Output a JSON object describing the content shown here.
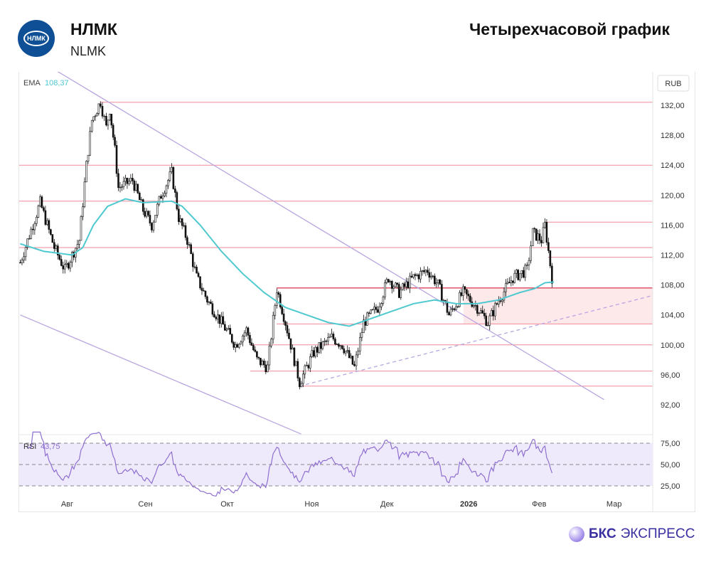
{
  "header": {
    "logo_text": "НЛМК",
    "ticker": "НЛМК",
    "subtitle": "NLMK",
    "title": "Четырехчасовой график"
  },
  "brand": {
    "bold": "БКС",
    "rest": "ЭКСПРЕСС"
  },
  "colors": {
    "ema": "#4fc9d0",
    "level": "#f08a9a",
    "trend": "#b9a6e0",
    "rsi": "#8e6fd0",
    "zone": "#fde8ea"
  },
  "chart_data": {
    "type": "candlestick",
    "currency": "RUB",
    "xlim": [
      12,
      263
    ],
    "ylim": [
      90.5,
      134
    ],
    "yticks": [
      "132,00",
      "128,00",
      "124,00",
      "120,00",
      "116,00",
      "112,00",
      "108,00",
      "104,00",
      "100,00",
      "96,00",
      "92,00"
    ],
    "ytick_values": [
      132,
      128,
      124,
      120,
      116,
      112,
      108,
      104,
      100,
      96,
      92
    ],
    "xticks": [
      {
        "label": "Авг",
        "day": 31
      },
      {
        "label": "Сен",
        "day": 62
      },
      {
        "label": "Окт",
        "day": 94.4
      },
      {
        "label": "Ноя",
        "day": 127.9
      },
      {
        "label": "Дек",
        "day": 157.7
      },
      {
        "label": "2026",
        "day": 190.1
      },
      {
        "label": "Фев",
        "day": 218
      },
      {
        "label": "Мар",
        "day": 247.7
      }
    ],
    "price_path": [
      [
        12.4,
        111
      ],
      [
        20.3,
        119
      ],
      [
        25.9,
        113
      ],
      [
        30.1,
        110
      ],
      [
        35.8,
        114
      ],
      [
        38.6,
        124
      ],
      [
        40.8,
        130
      ],
      [
        44.2,
        132.5
      ],
      [
        46.5,
        129
      ],
      [
        47.9,
        131.5
      ],
      [
        49.9,
        126
      ],
      [
        51.3,
        121
      ],
      [
        56.9,
        122
      ],
      [
        61.1,
        118
      ],
      [
        64.5,
        116
      ],
      [
        68.2,
        120
      ],
      [
        72.4,
        123
      ],
      [
        75.2,
        117
      ],
      [
        78.6,
        114
      ],
      [
        82.3,
        109
      ],
      [
        86.5,
        106
      ],
      [
        92.1,
        103
      ],
      [
        97.7,
        100
      ],
      [
        102,
        102
      ],
      [
        106.2,
        98
      ],
      [
        110.4,
        97
      ],
      [
        114.1,
        107.5
      ],
      [
        117.5,
        103
      ],
      [
        120.3,
        99
      ],
      [
        123.1,
        95
      ],
      [
        128.7,
        99
      ],
      [
        135.8,
        101
      ],
      [
        140,
        100
      ],
      [
        144.8,
        97
      ],
      [
        148.5,
        103
      ],
      [
        154.1,
        105
      ],
      [
        158.3,
        109
      ],
      [
        162.5,
        107
      ],
      [
        168.2,
        109
      ],
      [
        173.8,
        110
      ],
      [
        178,
        108
      ],
      [
        182.3,
        104
      ],
      [
        187.9,
        107
      ],
      [
        193.5,
        105
      ],
      [
        197.7,
        103
      ],
      [
        202,
        106
      ],
      [
        207.6,
        109
      ],
      [
        213.2,
        110
      ],
      [
        215.5,
        115
      ],
      [
        218.9,
        114
      ],
      [
        220.3,
        116
      ],
      [
        223.1,
        109
      ],
      [
        223.9,
        111
      ]
    ],
    "ema": {
      "label": "EMA",
      "value": "108,37",
      "points": [
        [
          12.4,
          113.5
        ],
        [
          21.7,
          112.5
        ],
        [
          33,
          112
        ],
        [
          37.2,
          113
        ],
        [
          41.4,
          116
        ],
        [
          47,
          118.5
        ],
        [
          54.1,
          119.5
        ],
        [
          61.1,
          119
        ],
        [
          72.4,
          119.2
        ],
        [
          76.6,
          118.5
        ],
        [
          83.7,
          116
        ],
        [
          92.1,
          112.5
        ],
        [
          100.6,
          109.5
        ],
        [
          109,
          107
        ],
        [
          117.5,
          105
        ],
        [
          125.9,
          104
        ],
        [
          134.4,
          103
        ],
        [
          142.8,
          102.5
        ],
        [
          151.3,
          103.5
        ],
        [
          159.7,
          104.5
        ],
        [
          168.2,
          105.5
        ],
        [
          176.6,
          106
        ],
        [
          185.1,
          105.5
        ],
        [
          193.5,
          105.5
        ],
        [
          202,
          106
        ],
        [
          210.4,
          107
        ],
        [
          216.1,
          107.5
        ],
        [
          220.3,
          108.3
        ],
        [
          223.9,
          108.4
        ]
      ]
    },
    "levels": [
      {
        "price": 132.4,
        "from": 44
      },
      {
        "price": 124,
        "from": 12
      },
      {
        "price": 119.2,
        "from": 12
      },
      {
        "price": 116.4,
        "from": 220
      },
      {
        "price": 113,
        "from": 12
      },
      {
        "price": 111.7,
        "from": 221.5
      },
      {
        "price": 107.6,
        "from": 114,
        "strong": true
      },
      {
        "price": 102.8,
        "from": 114
      },
      {
        "price": 100,
        "from": 103.5
      },
      {
        "price": 96.5,
        "from": 103.5
      },
      {
        "price": 94.5,
        "from": 123
      }
    ],
    "zone": {
      "from": 188,
      "to": 263,
      "low": 102.8,
      "high": 107.6
    },
    "trendlines": [
      {
        "from": [
          26.8,
          136.6
        ],
        "to": [
          243.7,
          92.7
        ]
      },
      {
        "from": [
          12.4,
          104
        ],
        "to": [
          123.7,
          88.1
        ]
      },
      {
        "from": [
          123.1,
          94.5
        ],
        "to": [
          263,
          106.6
        ],
        "dashed": true
      }
    ],
    "rsi": {
      "label": "RSI",
      "value": "43,75",
      "yticks": [
        "75,00",
        "50,00",
        "25,00"
      ],
      "ytick_values": [
        75,
        50,
        25
      ],
      "ylim": [
        10,
        90
      ]
    }
  }
}
